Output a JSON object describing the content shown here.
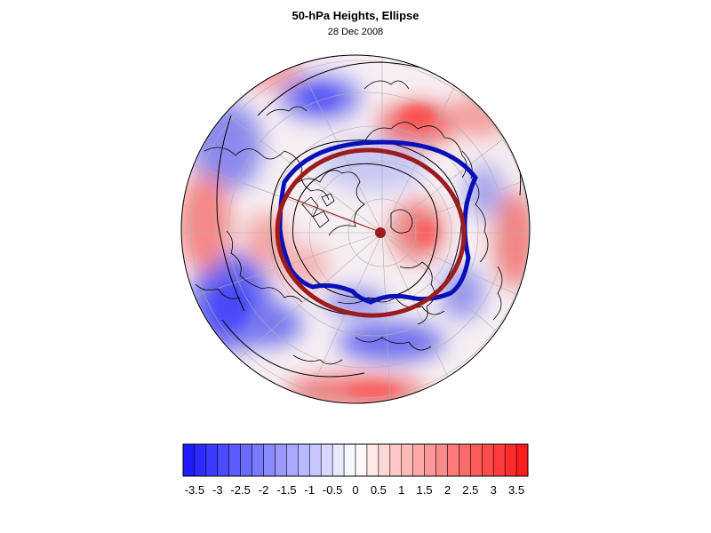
{
  "title": "50-hPa Heights, Ellipse",
  "subtitle": "28 Dec 2008",
  "colors": {
    "ellipse": "#9b1c1c",
    "vortex_edge": "#0a10b8",
    "neg_max": "#1414ff",
    "pos_max": "#ff1414"
  },
  "colorbar": {
    "min": -3.75,
    "max": 3.75,
    "step": 0.25,
    "tick_labels": [
      "-3.5",
      "-3",
      "-2.5",
      "-2",
      "-1.5",
      "-1",
      "-0.5",
      "0",
      "0.5",
      "1",
      "1.5",
      "2",
      "2.5",
      "3",
      "3.5"
    ],
    "tick_values": [
      -3.5,
      -3,
      -2.5,
      -2,
      -1.5,
      -1,
      -0.5,
      0,
      0.5,
      1,
      1.5,
      2,
      2.5,
      3,
      3.5
    ]
  }
}
